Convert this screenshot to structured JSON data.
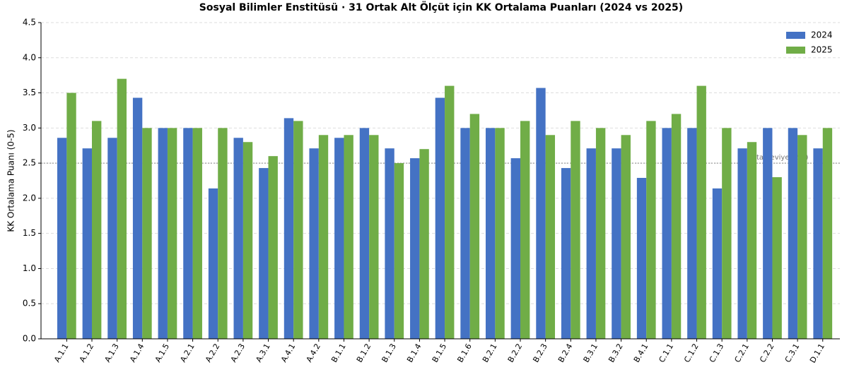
{
  "chart_data": {
    "type": "bar",
    "title": "Sosyal Bilimler Enstitüsü · 31 Ortak Alt Ölçüt için KK Ortalama Puanları (2024 vs 2025)",
    "y_label": "KK Ortalama Puanı (0-5)",
    "categories": [
      "A.1.1",
      "A.1.2",
      "A.1.3",
      "A.1.4",
      "A.1.5",
      "A.2.1",
      "A.2.2",
      "A.2.3",
      "A.3.1",
      "A.4.1",
      "A.4.2",
      "B.1.1",
      "B.1.2",
      "B.1.3",
      "B.1.4",
      "B.1.5",
      "B.1.6",
      "B.2.1",
      "B.2.2",
      "B.2.3",
      "B.2.4",
      "B.3.1",
      "B.3.2",
      "B.4.1",
      "C.1.1",
      "C.1.2",
      "C.1.3",
      "C.2.1",
      "C.2.2",
      "C.3.1",
      "D.1.1"
    ],
    "series": [
      {
        "name": "2024",
        "color": "#4472c4",
        "values": [
          2.86,
          2.71,
          2.86,
          3.43,
          3.0,
          3.0,
          2.14,
          2.86,
          2.43,
          3.14,
          2.71,
          2.86,
          3.0,
          2.71,
          2.57,
          3.43,
          3.0,
          3.0,
          2.57,
          3.57,
          2.43,
          2.71,
          2.71,
          2.29,
          3.0,
          3.0,
          2.14,
          2.71,
          3.0,
          3.0,
          2.71
        ]
      },
      {
        "name": "2025",
        "color": "#70ad47",
        "values": [
          3.5,
          3.1,
          3.7,
          3.0,
          3.0,
          3.0,
          3.0,
          2.8,
          2.6,
          3.1,
          2.9,
          2.9,
          2.9,
          2.5,
          2.7,
          3.6,
          3.2,
          3.0,
          3.1,
          2.9,
          3.1,
          3.0,
          2.9,
          3.1,
          3.2,
          3.6,
          3.0,
          2.8,
          2.3,
          2.9,
          3.0
        ]
      }
    ],
    "ylim": [
      0,
      4.5
    ],
    "yticks": [
      {
        "value": 0,
        "label": "0.0"
      },
      0.5,
      {
        "value": 1,
        "label": "1.0"
      },
      1.5,
      {
        "value": 2,
        "label": "2.0"
      },
      2.5,
      {
        "value": 3,
        "label": "3.0"
      },
      3.5,
      {
        "value": 4,
        "label": "4.0"
      },
      4.5
    ],
    "grid": true,
    "legend": "upper right",
    "reference_line": {
      "value": 2.5,
      "label": "Orta Seviye (2.5)"
    }
  }
}
